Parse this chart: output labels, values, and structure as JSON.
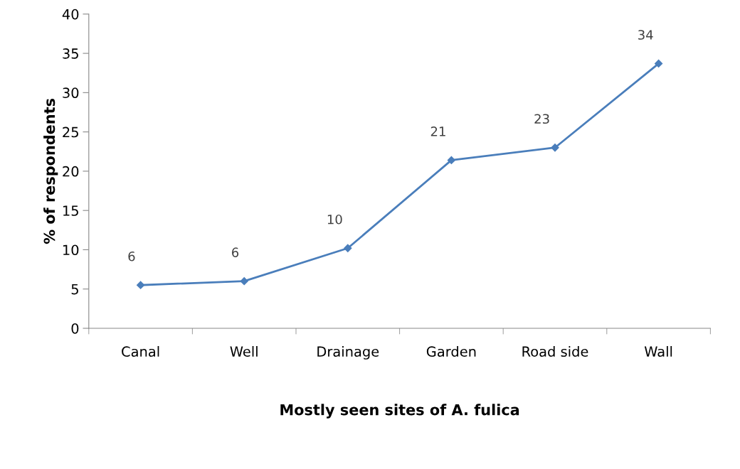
{
  "chart_data": {
    "type": "line",
    "xlabel": "Mostly seen sites of A. fulica",
    "ylabel": "% of respondents",
    "categories": [
      "Canal",
      "Well",
      "Drainage",
      "Garden",
      "Road side",
      "Wall"
    ],
    "values": [
      5.5,
      6,
      10.2,
      21.4,
      23,
      33.7
    ],
    "value_labels": [
      "6",
      "6",
      "10",
      "21",
      "23",
      "34"
    ],
    "color": "#4a7ebb",
    "marker": "diamond",
    "line_style": "solid",
    "ylim": [
      0,
      40
    ],
    "yticks": [
      0,
      5,
      10,
      15,
      20,
      25,
      30,
      35,
      40
    ],
    "grid": false,
    "legend": false
  }
}
